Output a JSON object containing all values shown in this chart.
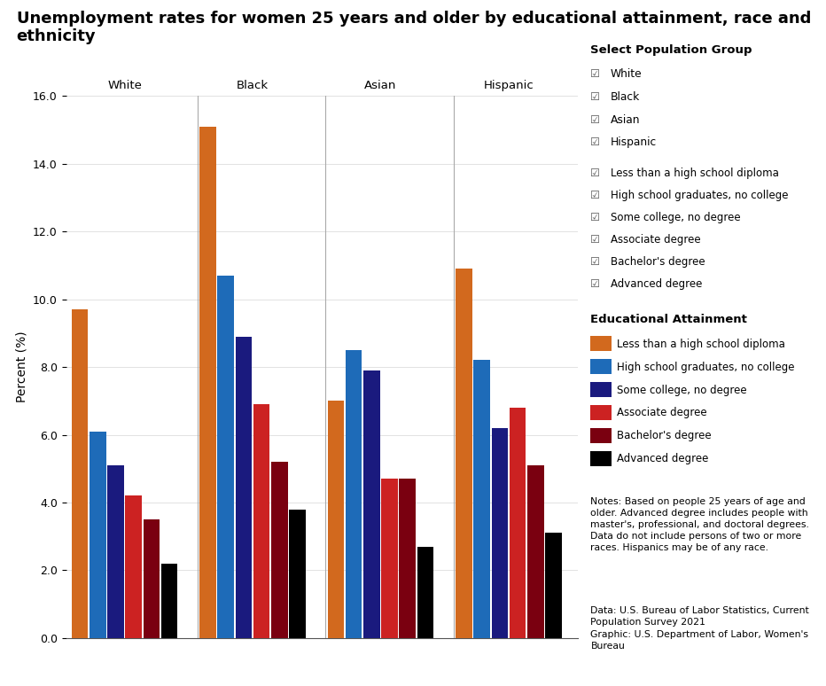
{
  "title": "Unemployment rates for women 25 years and older by educational attainment, race and\nethnicity",
  "groups": [
    "White",
    "Black",
    "Asian",
    "Hispanic"
  ],
  "categories": [
    "Less than a high school diploma",
    "High school graduates, no college",
    "Some college, no degree",
    "Associate degree",
    "Bachelor's degree",
    "Advanced degree"
  ],
  "colors": [
    "#D2691E",
    "#1E6BB8",
    "#1A1A7E",
    "#CC2222",
    "#7A0010",
    "#000000"
  ],
  "data": {
    "White": [
      9.7,
      6.1,
      5.1,
      4.2,
      3.5,
      2.2
    ],
    "Black": [
      15.1,
      10.7,
      8.9,
      6.9,
      5.2,
      3.8
    ],
    "Asian": [
      7.0,
      8.5,
      7.9,
      4.7,
      4.7,
      2.7
    ],
    "Hispanic": [
      10.9,
      8.2,
      6.2,
      6.8,
      5.1,
      3.1
    ]
  },
  "ylabel": "Percent (%)",
  "ylim": [
    0,
    16.0
  ],
  "yticks": [
    0.0,
    2.0,
    4.0,
    6.0,
    8.0,
    10.0,
    12.0,
    14.0,
    16.0
  ],
  "background_color": "#FFFFFF",
  "title_fontsize": 13,
  "notes_text": "Notes: Based on people 25 years of age and\nolder. Advanced degree includes people with\nmaster's, professional, and doctoral degrees.\nData do not include persons of two or more\nraces. Hispanics may be of any race.",
  "data_source": "Data: U.S. Bureau of Labor Statistics, Current\nPopulation Survey 2021\nGraphic: U.S. Department of Labor, Women's\nBureau",
  "select_population_group_items": [
    "White",
    "Black",
    "Asian",
    "Hispanic"
  ],
  "select_education_items": [
    "Less than a high school diploma",
    "High school graduates, no college",
    "Some college, no degree",
    "Associate degree",
    "Bachelor's degree",
    "Advanced degree"
  ],
  "select_education_colors": [
    "#D2691E",
    "#1E6BB8",
    "#1A1A7E",
    "#CC2222",
    "#7A0010",
    "#000000"
  ]
}
